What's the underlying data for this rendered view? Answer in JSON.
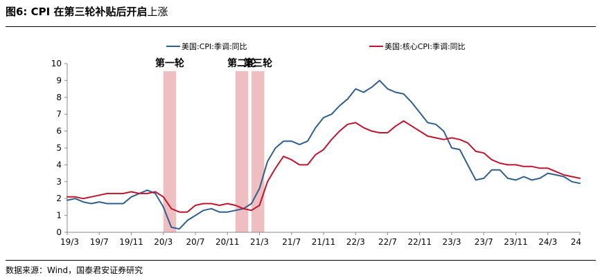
{
  "figure": {
    "number": "图6:",
    "title_bold": "CPI 在第三轮补贴后开启",
    "title_rest": "上涨",
    "source": "数据来源：Wind，国泰君安证券研究"
  },
  "chart_data": {
    "type": "line",
    "xlabel": "",
    "ylabel": "",
    "ylim": [
      0,
      10
    ],
    "yticks": [
      0,
      1,
      2,
      3,
      4,
      5,
      6,
      7,
      8,
      9,
      10
    ],
    "x_tick_labels": [
      "19/3",
      "19/7",
      "19/11",
      "20/3",
      "20/7",
      "20/11",
      "21/3",
      "21/7",
      "21/11",
      "22/3",
      "22/7",
      "22/11",
      "23/3",
      "23/7",
      "23/11",
      "24/3",
      "24"
    ],
    "x_tick_months": [
      "2019-03",
      "2019-07",
      "2019-11",
      "2020-03",
      "2020-07",
      "2020-11",
      "2021-03",
      "2021-07",
      "2021-11",
      "2022-03",
      "2022-07",
      "2022-11",
      "2023-03",
      "2023-07",
      "2023-11",
      "2024-03",
      "2024-07"
    ],
    "x": [
      "2019-03",
      "2019-04",
      "2019-05",
      "2019-06",
      "2019-07",
      "2019-08",
      "2019-09",
      "2019-10",
      "2019-11",
      "2019-12",
      "2020-01",
      "2020-02",
      "2020-03",
      "2020-04",
      "2020-05",
      "2020-06",
      "2020-07",
      "2020-08",
      "2020-09",
      "2020-10",
      "2020-11",
      "2020-12",
      "2021-01",
      "2021-02",
      "2021-03",
      "2021-04",
      "2021-05",
      "2021-06",
      "2021-07",
      "2021-08",
      "2021-09",
      "2021-10",
      "2021-11",
      "2021-12",
      "2022-01",
      "2022-02",
      "2022-03",
      "2022-04",
      "2022-05",
      "2022-06",
      "2022-07",
      "2022-08",
      "2022-09",
      "2022-10",
      "2022-11",
      "2022-12",
      "2023-01",
      "2023-02",
      "2023-03",
      "2023-04",
      "2023-05",
      "2023-06",
      "2023-07",
      "2023-08",
      "2023-09",
      "2023-10",
      "2023-11",
      "2023-12",
      "2024-01",
      "2024-02",
      "2024-03",
      "2024-04",
      "2024-05",
      "2024-06",
      "2024-07"
    ],
    "series": [
      {
        "name": "美国:CPI:季调:同比",
        "color": "#2f5e8e",
        "values": [
          1.9,
          2.0,
          1.8,
          1.7,
          1.8,
          1.7,
          1.7,
          1.7,
          2.1,
          2.3,
          2.5,
          2.3,
          1.5,
          0.3,
          0.2,
          0.7,
          1.0,
          1.3,
          1.4,
          1.2,
          1.2,
          1.3,
          1.4,
          1.7,
          2.6,
          4.2,
          5.0,
          5.4,
          5.4,
          5.2,
          5.4,
          6.2,
          6.8,
          7.0,
          7.5,
          7.9,
          8.5,
          8.3,
          8.6,
          9.0,
          8.5,
          8.3,
          8.2,
          7.7,
          7.1,
          6.5,
          6.4,
          6.0,
          5.0,
          4.9,
          4.0,
          3.1,
          3.2,
          3.7,
          3.7,
          3.2,
          3.1,
          3.3,
          3.1,
          3.2,
          3.5,
          3.4,
          3.3,
          3.0,
          2.9
        ]
      },
      {
        "name": "美国:核心CPI:季调:同比",
        "color": "#c0142e",
        "values": [
          2.1,
          2.1,
          2.0,
          2.1,
          2.2,
          2.3,
          2.3,
          2.3,
          2.4,
          2.3,
          2.3,
          2.4,
          2.1,
          1.4,
          1.2,
          1.2,
          1.6,
          1.7,
          1.7,
          1.6,
          1.7,
          1.6,
          1.4,
          1.3,
          1.6,
          3.0,
          3.8,
          4.5,
          4.3,
          4.0,
          4.0,
          4.6,
          4.9,
          5.5,
          6.0,
          6.4,
          6.5,
          6.2,
          6.0,
          5.9,
          5.9,
          6.3,
          6.6,
          6.3,
          6.0,
          5.7,
          5.6,
          5.5,
          5.6,
          5.5,
          5.3,
          4.8,
          4.7,
          4.3,
          4.1,
          4.0,
          4.0,
          3.9,
          3.9,
          3.8,
          3.8,
          3.6,
          3.4,
          3.3,
          3.2
        ]
      }
    ],
    "shaded_ranges": [
      {
        "label": "第一轮",
        "start": "2020-03",
        "end": "2020-04"
      },
      {
        "label": "第二轮",
        "start": "2020-12",
        "end": "2021-01"
      },
      {
        "label": "第三轮",
        "start": "2021-02",
        "end": "2021-03"
      }
    ],
    "shade_color": "#e9a8ab",
    "grid": false,
    "legend_position": "top"
  }
}
